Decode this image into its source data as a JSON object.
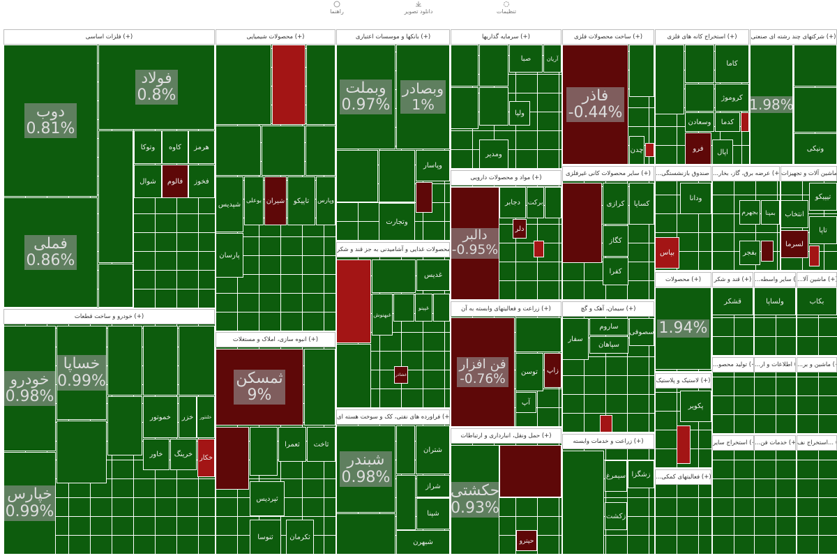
{
  "toolbar": [
    {
      "label": "راهنما"
    },
    {
      "label": "دانلود تصویر"
    },
    {
      "label": "تنظیمات"
    }
  ],
  "sectors": [
    {
      "title": "فلزات اساسی (+)",
      "tiles": [
        {
          "label": "دوب",
          "change": "0.81%",
          "color": "#0d5c0d"
        },
        {
          "label": "فملی",
          "change": "0.86%",
          "color": "#0d5c0d"
        },
        {
          "label": "فولاد",
          "change": "0.8%",
          "color": "#0d5c0d"
        },
        {
          "color": "#0d5c0d"
        },
        {
          "label": "وتوکا",
          "color": "#0d5c0d"
        },
        {
          "label": "کاوه",
          "color": "#0d5c0d"
        },
        {
          "label": "هرمز",
          "color": "#0d5c0d"
        },
        {
          "label": "شوال",
          "color": "#0d5c0d"
        },
        {
          "label": "فالوم",
          "color": "#5e0808"
        },
        {
          "label": "فخوز",
          "color": "#0d5c0d"
        },
        {
          "color": "#0d5c0d"
        }
      ]
    },
    {
      "title": "محصولات شیمیایی (+)",
      "tiles": [
        {
          "color": "#0d5c0d"
        },
        {
          "color": "#a31515"
        },
        {
          "color": "#0d5c0d"
        },
        {
          "color": "#0d5c0d"
        },
        {
          "color": "#0d5c0d"
        },
        {
          "color": "#0d5c0d"
        },
        {
          "label": "شپدیس",
          "color": "#0d5c0d"
        },
        {
          "label": "بوعلی",
          "color": "#0d5c0d"
        },
        {
          "label": "شیران",
          "color": "#5e0808"
        },
        {
          "label": "تاپیکو",
          "color": "#0d5c0d"
        },
        {
          "label": "وپارس",
          "color": "#0d5c0d"
        },
        {
          "label": "پارسان",
          "color": "#0d5c0d"
        }
      ]
    },
    {
      "title": "بانکها و موسسات اعتباری (+)",
      "tiles": [
        {
          "label": "وبملت",
          "change": "0.97%",
          "color": "#0d5c0d"
        },
        {
          "label": "وبصادر",
          "change": "1%",
          "color": "#0d5c0d"
        },
        {
          "color": "#0d5c0d"
        },
        {
          "color": "#0d5c0d"
        },
        {
          "label": "وپاسار",
          "color": "#0d5c0d"
        },
        {
          "color": "#5e0808"
        },
        {
          "label": "وتجارت",
          "color": "#0d5c0d"
        }
      ]
    },
    {
      "title": "سرمایه گذاریها (+)",
      "tiles": [
        {
          "color": "#0d5c0d"
        },
        {
          "color": "#0d5c0d"
        },
        {
          "label": "صبا",
          "color": "#0d5c0d"
        },
        {
          "label": "آریان",
          "color": "#0d5c0d"
        },
        {
          "color": "#0d5c0d"
        },
        {
          "color": "#0d5c0d"
        },
        {
          "label": "ولپا",
          "color": "#0d5c0d"
        },
        {
          "label": "ومدیر",
          "color": "#0d5c0d"
        }
      ]
    },
    {
      "title": "ساخت محصولات فلزی (+)",
      "tiles": [
        {
          "label": "فاذر",
          "change": "-0.44%",
          "color": "#5e0808"
        },
        {
          "color": "#0d5c0d"
        },
        {
          "label": "چدن",
          "color": "#0d5c0d"
        },
        {
          "color": "#a31515"
        }
      ]
    },
    {
      "title": "استخراج کانه های فلزی (+)",
      "tiles": [
        {
          "color": "#0d5c0d"
        },
        {
          "color": "#0d5c0d"
        },
        {
          "label": "کاما",
          "color": "#0d5c0d"
        },
        {
          "color": "#0d5c0d"
        },
        {
          "label": "کروموژ",
          "color": "#0d5c0d"
        },
        {
          "label": "وسعادن",
          "color": "#0d5c0d"
        },
        {
          "label": "کدما",
          "color": "#0d5c0d"
        },
        {
          "color": "#a31515"
        },
        {
          "label": "فرو",
          "color": "#5e0808"
        },
        {
          "label": "اپال",
          "color": "#0d5c0d"
        }
      ]
    },
    {
      "title": "شرکتهای چند رشته ای صنعتی (+)",
      "tiles": [
        {
          "change": "1.98%",
          "color": "#0d5c0d"
        },
        {
          "color": "#0d5c0d"
        },
        {
          "color": "#0d5c0d"
        },
        {
          "label": "ونیکی",
          "color": "#0d5c0d"
        }
      ]
    },
    {
      "title": "خودرو و ساخت قطعات (+)",
      "tiles": [
        {
          "label": "خودرو",
          "change": "0.98%",
          "color": "#0d5c0d"
        },
        {
          "label": "خساپا",
          "change": "0.99%",
          "color": "#0d5c0d"
        },
        {
          "color": "#0d5c0d"
        },
        {
          "color": "#0d5c0d"
        },
        {
          "color": "#0d5c0d"
        },
        {
          "label": "خپارس",
          "change": "0.99%",
          "color": "#0d5c0d"
        },
        {
          "color": "#0d5c0d"
        },
        {
          "color": "#0d5c0d"
        },
        {
          "label": "خموتور",
          "color": "#0d5c0d"
        },
        {
          "label": "خزر",
          "color": "#0d5c0d"
        },
        {
          "label": "خلنتور",
          "color": "#0d5c0d"
        },
        {
          "label": "خاور",
          "color": "#0d5c0d"
        },
        {
          "label": "خرینگ",
          "color": "#0d5c0d"
        },
        {
          "label": "خکار",
          "color": "#a31515"
        }
      ]
    },
    {
      "title": "انبوه سازی، املاک و مستغلات (+)",
      "tiles": [
        {
          "label": "ثمسکن",
          "change": "9%",
          "color": "#5e0808"
        },
        {
          "color": "#0d5c0d"
        },
        {
          "color": "#5e0808"
        },
        {
          "color": "#0d5c0d"
        },
        {
          "label": "ثعمرا",
          "color": "#0d5c0d"
        },
        {
          "label": "ثاخت",
          "color": "#0d5c0d"
        },
        {
          "label": "ثپردیس",
          "color": "#0d5c0d"
        },
        {
          "label": "ثنوسا",
          "color": "#0d5c0d"
        },
        {
          "label": "ثکرمان",
          "color": "#0d5c0d"
        }
      ]
    },
    {
      "title": "محصولات غذایی و آشامیدنی به جز قند و شکر (+)",
      "tiles": [
        {
          "color": "#a31515"
        },
        {
          "color": "#0d5c0d"
        },
        {
          "label": "غدیس",
          "color": "#0d5c0d"
        },
        {
          "label": "غبهنوش",
          "color": "#0d5c0d"
        },
        {
          "color": "#0d5c0d"
        },
        {
          "label": "غپینو",
          "color": "#0d5c0d"
        },
        {
          "color": "#0d5c0d"
        },
        {
          "color": "#0d5c0d"
        },
        {
          "label": "غشاذر",
          "color": "#5e0808"
        }
      ]
    },
    {
      "title": "فراورده های نفتی، کک و سوخت هسته ای (+)",
      "tiles": [
        {
          "label": "شبندر",
          "change": "0.98%",
          "color": "#0d5c0d"
        },
        {
          "color": "#0d5c0d"
        },
        {
          "label": "شتران",
          "color": "#0d5c0d"
        },
        {
          "color": "#0d5c0d"
        },
        {
          "label": "شراز",
          "color": "#0d5c0d"
        },
        {
          "label": "شپنا",
          "color": "#0d5c0d"
        },
        {
          "label": "شبهرن",
          "color": "#0d5c0d"
        },
        {
          "color": "#0d5c0d"
        }
      ]
    },
    {
      "title": "مواد و محصولات دارویی (+)",
      "tiles": [
        {
          "label": "دالبر",
          "change": "-0.95%",
          "color": "#5e0808"
        },
        {
          "label": "دجابر",
          "color": "#0d5c0d"
        },
        {
          "label": "برکت",
          "color": "#0d5c0d"
        },
        {
          "color": "#0d5c0d"
        },
        {
          "label": "دلر",
          "color": "#5e0808"
        },
        {
          "color": "#a31515"
        }
      ]
    },
    {
      "title": "زراعت و فعالیتهای وابسته به آن (+)",
      "tiles": [
        {
          "label": "فن افزار",
          "change": "-0.76%",
          "color": "#5e0808"
        },
        {
          "color": "#0d5c0d"
        },
        {
          "label": "توسن",
          "color": "#0d5c0d"
        },
        {
          "label": "زاپ",
          "color": "#5e0808"
        },
        {
          "label": "آپ",
          "color": "#0d5c0d"
        }
      ]
    },
    {
      "title": "حمل ونقل، انبارداری و ارتباطات (+)",
      "tiles": [
        {
          "label": "حکشتی",
          "change": "0.93%",
          "color": "#0d5c0d"
        },
        {
          "color": "#5e0808"
        },
        {
          "label": "حپترو",
          "color": "#5e0808"
        }
      ]
    },
    {
      "title": "سایر محصولات کانی غیرفلزی (+)",
      "tiles": [
        {
          "color": "#5e0808"
        },
        {
          "label": "کرازی",
          "color": "#0d5c0d"
        },
        {
          "label": "کساپا",
          "color": "#0d5c0d"
        },
        {
          "label": "کگاز",
          "color": "#0d5c0d"
        },
        {
          "label": "کفرا",
          "color": "#0d5c0d"
        }
      ]
    },
    {
      "title": "سیمان، آهک و گچ (+)",
      "tiles": [
        {
          "label": "سفار",
          "color": "#0d5c0d"
        },
        {
          "label": "ساروم",
          "color": "#0d5c0d"
        },
        {
          "label": "سپاهان",
          "color": "#0d5c0d"
        },
        {
          "label": "سصوفی",
          "color": "#0d5c0d"
        },
        {
          "color": "#a31515"
        }
      ]
    },
    {
      "title": "زراعت و خدمات وابسته (+)",
      "tiles": [
        {
          "color": "#0d5c0d"
        },
        {
          "label": "سیمرغ",
          "color": "#0d5c0d"
        },
        {
          "label": "زشگزا",
          "color": "#0d5c0d"
        },
        {
          "label": "زکشت",
          "color": "#0d5c0d"
        }
      ]
    },
    {
      "title": "...بیمه و صندوق بازنشستگی",
      "tiles": [
        {
          "label": "ودانا",
          "color": "#0d5c0d"
        },
        {
          "label": "بپاس",
          "color": "#a31515"
        }
      ]
    },
    {
      "title": "...عرضه برق، گاز، بخار (+)",
      "tiles": [
        {
          "label": "بجهرم",
          "color": "#0d5c0d"
        },
        {
          "label": "بمپنا",
          "color": "#0d5c0d"
        },
        {
          "label": "بفجر",
          "color": "#0d5c0d"
        },
        {
          "color": "#5e0808"
        }
      ]
    },
    {
      "title": "ماشین آلات و تجهیزات (+)",
      "tiles": [
        {
          "label": "تیپیکو",
          "color": "#0d5c0d"
        },
        {
          "label": "انتخاب",
          "color": "#0d5c0d"
        },
        {
          "label": "تاپا",
          "color": "#0d5c0d"
        },
        {
          "label": "لسرما",
          "color": "#5e0808"
        },
        {
          "color": "#a31515"
        }
      ]
    },
    {
      "title": "محصولات (+)",
      "tiles": [
        {
          "change": "1.94%",
          "color": "#0d5c0d"
        }
      ]
    },
    {
      "title": "قند و شکر (+)",
      "tiles": [
        {
          "label": "قشکر",
          "color": "#0d5c0d"
        }
      ]
    },
    {
      "title": "...سایر واسطه (+)",
      "tiles": [
        {
          "label": "ولساپا",
          "color": "#0d5c0d"
        }
      ]
    },
    {
      "title": "...ماشین آلا (+)",
      "tiles": [
        {
          "label": "بکاب",
          "color": "#0d5c0d"
        }
      ]
    },
    {
      "title": "لاستیک و پلاستیک (+)",
      "tiles": [
        {
          "label": "پکویر",
          "color": "#0d5c0d"
        },
        {
          "color": "#a31515"
        }
      ]
    },
    {
      "title": "...فعالیتهای کمکی (+)"
    },
    {
      "title": "...تولید محصو (+)"
    },
    {
      "title": "...اطلاعات و ار (+)"
    },
    {
      "title": "...ماشین و بر (+)"
    },
    {
      "title": "استخراج سایر (+)"
    },
    {
      "title": "...خدمات فن (+)"
    },
    {
      "title": "استخراج نف... (+)"
    }
  ]
}
